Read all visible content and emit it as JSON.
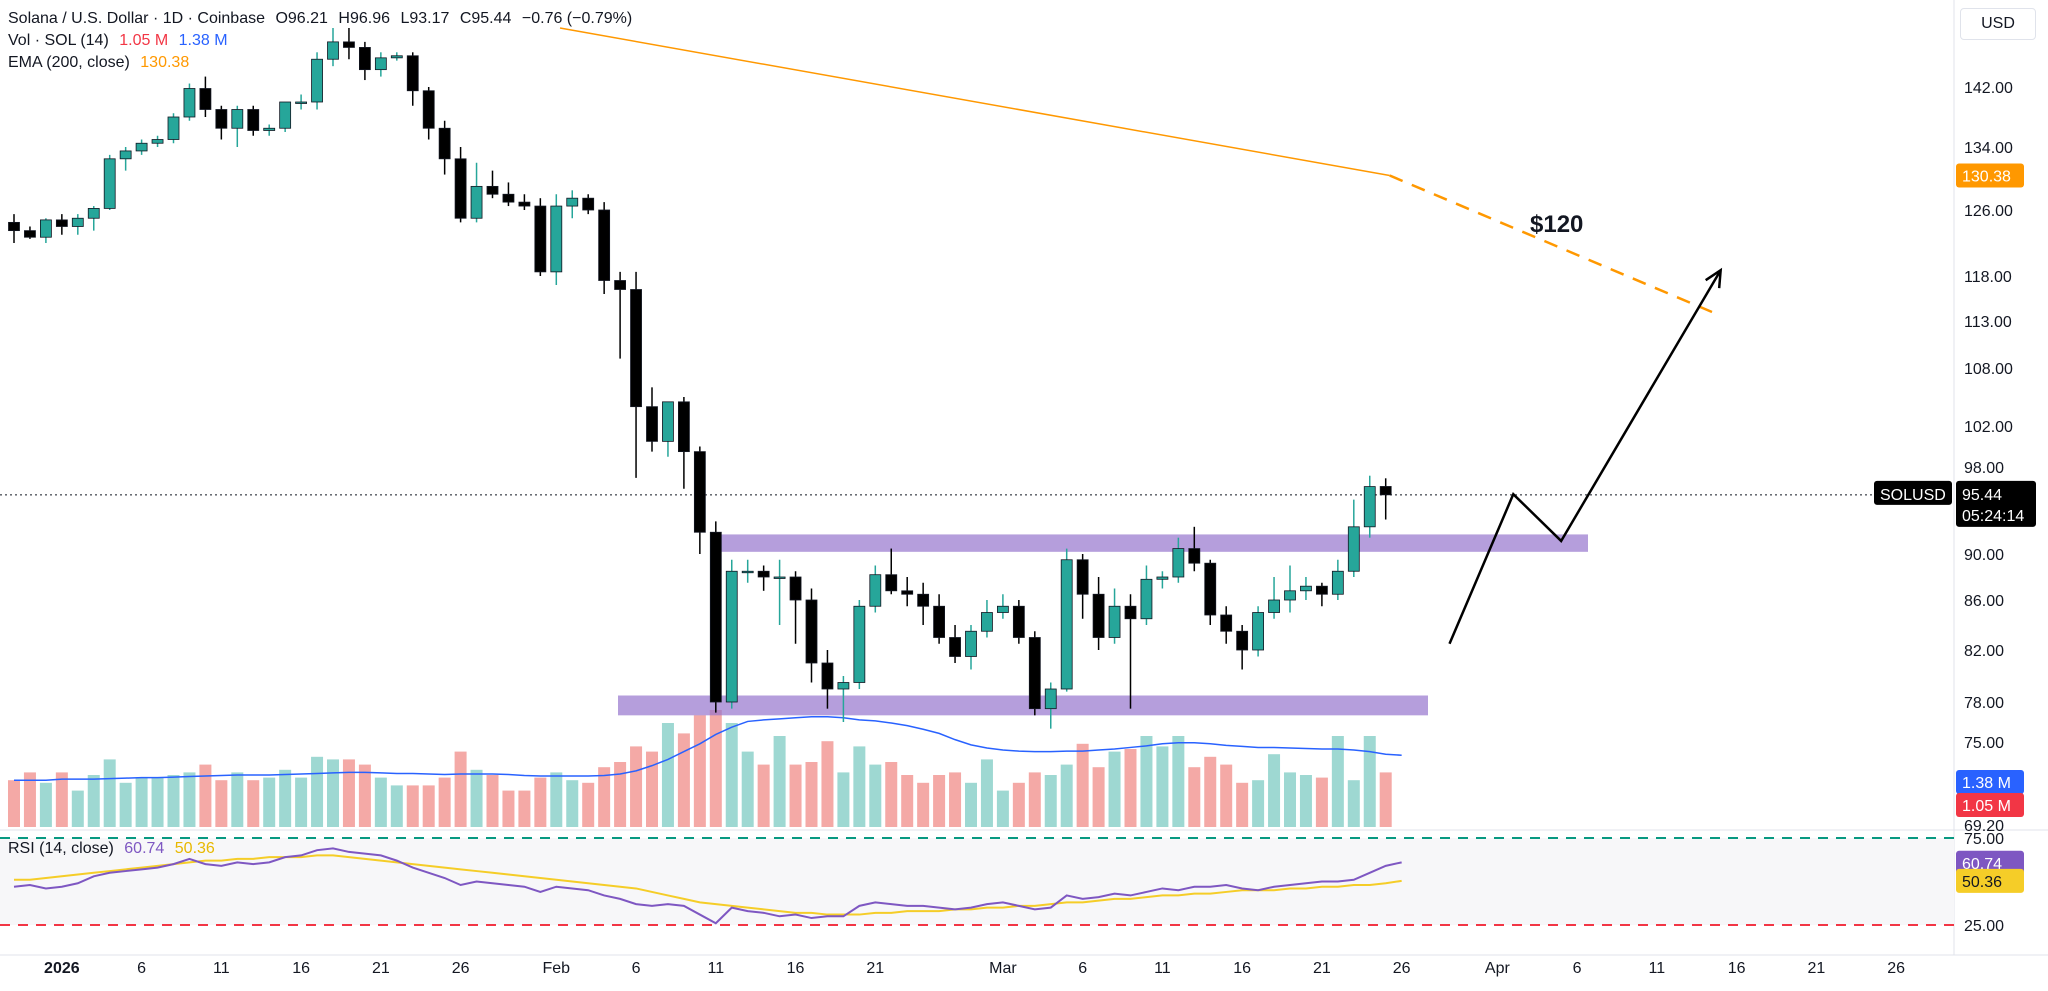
{
  "legend": {
    "title": "Solana / U.S. Dollar · 1D · Coinbase",
    "open": "O96.21",
    "high": "H96.96",
    "low": "L93.17",
    "close": "C95.44",
    "change": "−0.76 (−0.79%)",
    "vol_label": "Vol · SOL (14)",
    "vol_value1": "1.05 M",
    "vol_value2": "1.38 M",
    "ema_label": "EMA (200, close)",
    "ema_value": "130.38",
    "rsi_label": "RSI (14, close)",
    "rsi_value": "60.74",
    "rsi_ma_value": "50.36"
  },
  "currency": "USD",
  "colors": {
    "up": "#26a69a",
    "down": "#000000",
    "vol_up": "#9ed8d2",
    "vol_down": "#f4a9a6",
    "ema": "#ff9800",
    "vol_ma": "#2962ff",
    "rsi": "#7e57c2",
    "rsi_ma": "#f5cd28",
    "zone": "#9575cd",
    "upper_band": "#089981",
    "lower_band": "#f23645",
    "price_tag": "#000000"
  },
  "chart_data": {
    "type": "candlestick",
    "symbol": "SOLUSD",
    "price_axis_ticks": [
      "142.00",
      "134.00",
      "126.00",
      "118.00",
      "113.00",
      "108.00",
      "102.00",
      "98.00",
      "90.00",
      "86.00",
      "82.00",
      "78.00",
      "75.00",
      "69.20"
    ],
    "rsi_axis_ticks": [
      "75.00",
      "25.00"
    ],
    "time_axis": [
      {
        "label": "2026",
        "bold": true,
        "index": 3
      },
      {
        "label": "6",
        "index": 8
      },
      {
        "label": "11",
        "index": 13
      },
      {
        "label": "16",
        "index": 18
      },
      {
        "label": "21",
        "index": 23
      },
      {
        "label": "26",
        "index": 28
      },
      {
        "label": "Feb",
        "index": 34
      },
      {
        "label": "6",
        "index": 39
      },
      {
        "label": "11",
        "index": 44
      },
      {
        "label": "16",
        "index": 49
      },
      {
        "label": "21",
        "index": 54
      },
      {
        "label": "Mar",
        "index": 62
      },
      {
        "label": "6",
        "index": 67
      },
      {
        "label": "11",
        "index": 72
      },
      {
        "label": "16",
        "index": 77
      },
      {
        "label": "21",
        "index": 82
      },
      {
        "label": "26",
        "index": 87
      },
      {
        "label": "Apr",
        "index": 93
      },
      {
        "label": "6",
        "index": 98
      },
      {
        "label": "11",
        "index": 103
      },
      {
        "label": "16",
        "index": 108
      },
      {
        "label": "21",
        "index": 113
      },
      {
        "label": "26",
        "index": 118
      }
    ],
    "candles": [
      {
        "o": 124.5,
        "h": 125.5,
        "l": 122,
        "c": 123.5,
        "v": 0.9
      },
      {
        "o": 123.5,
        "h": 124,
        "l": 122.5,
        "c": 122.7,
        "v": 1.05
      },
      {
        "o": 122.7,
        "h": 125,
        "l": 122,
        "c": 124.8,
        "v": 0.85
      },
      {
        "o": 124.8,
        "h": 125.5,
        "l": 123,
        "c": 124.0,
        "v": 1.05
      },
      {
        "o": 124.0,
        "h": 125.5,
        "l": 123,
        "c": 125.0,
        "v": 0.7
      },
      {
        "o": 125.0,
        "h": 126.5,
        "l": 123.5,
        "c": 126.2,
        "v": 1.0
      },
      {
        "o": 126.2,
        "h": 133,
        "l": 126,
        "c": 132.5,
        "v": 1.3
      },
      {
        "o": 132.5,
        "h": 134,
        "l": 131,
        "c": 133.5,
        "v": 0.85
      },
      {
        "o": 133.5,
        "h": 135,
        "l": 133,
        "c": 134.5,
        "v": 0.95
      },
      {
        "o": 134.5,
        "h": 135.5,
        "l": 134,
        "c": 135,
        "v": 0.95
      },
      {
        "o": 135,
        "h": 138.5,
        "l": 134.5,
        "c": 138,
        "v": 1.0
      },
      {
        "o": 138,
        "h": 142.5,
        "l": 137.5,
        "c": 141.8,
        "v": 1.05
      },
      {
        "o": 141.8,
        "h": 143.5,
        "l": 138,
        "c": 139,
        "v": 1.2
      },
      {
        "o": 139,
        "h": 139.5,
        "l": 135,
        "c": 136.5,
        "v": 0.9
      },
      {
        "o": 136.5,
        "h": 139.5,
        "l": 134,
        "c": 139,
        "v": 1.05
      },
      {
        "o": 139,
        "h": 139.5,
        "l": 135.5,
        "c": 136.2,
        "v": 0.9
      },
      {
        "o": 136.2,
        "h": 137,
        "l": 135.5,
        "c": 136.5,
        "v": 0.95
      },
      {
        "o": 136.5,
        "h": 140,
        "l": 136,
        "c": 140,
        "v": 1.1
      },
      {
        "o": 140,
        "h": 141,
        "l": 139,
        "c": 140,
        "v": 0.95
      },
      {
        "o": 140,
        "h": 147,
        "l": 139,
        "c": 146,
        "v": 1.35
      },
      {
        "o": 146,
        "h": 150.5,
        "l": 145,
        "c": 148.5,
        "v": 1.3
      },
      {
        "o": 148.5,
        "h": 151,
        "l": 146,
        "c": 147.7,
        "v": 1.3
      },
      {
        "o": 147.7,
        "h": 148.5,
        "l": 143,
        "c": 144.5,
        "v": 1.2
      },
      {
        "o": 144.5,
        "h": 147,
        "l": 143.5,
        "c": 146.2,
        "v": 0.95
      },
      {
        "o": 146.2,
        "h": 147,
        "l": 145.8,
        "c": 146.5,
        "v": 0.8
      },
      {
        "o": 146.5,
        "h": 147,
        "l": 139.5,
        "c": 141.5,
        "v": 0.8
      },
      {
        "o": 141.5,
        "h": 142,
        "l": 135,
        "c": 136.5,
        "v": 0.8
      },
      {
        "o": 136.5,
        "h": 137.5,
        "l": 130.5,
        "c": 132.5,
        "v": 0.95
      },
      {
        "o": 132.5,
        "h": 134,
        "l": 124.5,
        "c": 125,
        "v": 1.45
      },
      {
        "o": 125,
        "h": 132,
        "l": 124.5,
        "c": 129,
        "v": 1.1
      },
      {
        "o": 129,
        "h": 131,
        "l": 127.5,
        "c": 128,
        "v": 1.0
      },
      {
        "o": 128,
        "h": 129.5,
        "l": 126.5,
        "c": 127,
        "v": 0.7
      },
      {
        "o": 127,
        "h": 128,
        "l": 126,
        "c": 126.5,
        "v": 0.7
      },
      {
        "o": 126.5,
        "h": 127.5,
        "l": 118,
        "c": 118.5,
        "v": 0.95
      },
      {
        "o": 118.5,
        "h": 128,
        "l": 117,
        "c": 126.5,
        "v": 1.05
      },
      {
        "o": 126.5,
        "h": 128.5,
        "l": 125,
        "c": 127.5,
        "v": 0.9
      },
      {
        "o": 127.5,
        "h": 128,
        "l": 125.5,
        "c": 126,
        "v": 0.85
      },
      {
        "o": 126,
        "h": 127,
        "l": 116,
        "c": 117.5,
        "v": 1.15
      },
      {
        "o": 117.5,
        "h": 118.5,
        "l": 109,
        "c": 116.5,
        "v": 1.25
      },
      {
        "o": 116.5,
        "h": 118.5,
        "l": 97,
        "c": 104,
        "v": 1.55
      },
      {
        "o": 104,
        "h": 106,
        "l": 99.5,
        "c": 100.5,
        "v": 1.45
      },
      {
        "o": 100.5,
        "h": 104.5,
        "l": 99,
        "c": 104.5,
        "v": 2.0
      },
      {
        "o": 104.5,
        "h": 105,
        "l": 96,
        "c": 99.5,
        "v": 1.8
      },
      {
        "o": 99.5,
        "h": 100,
        "l": 90,
        "c": 92,
        "v": 2.15
      },
      {
        "o": 92,
        "h": 93,
        "l": 77.2,
        "c": 78,
        "v": 2.25
      },
      {
        "o": 78,
        "h": 89.5,
        "l": 77.5,
        "c": 88.5,
        "v": 2.0
      },
      {
        "o": 88.5,
        "h": 89.5,
        "l": 87.5,
        "c": 88.5,
        "v": 1.45
      },
      {
        "o": 88.5,
        "h": 89,
        "l": 86.8,
        "c": 88,
        "v": 1.2
      },
      {
        "o": 88,
        "h": 89.5,
        "l": 84,
        "c": 88,
        "v": 1.75
      },
      {
        "o": 88,
        "h": 88.5,
        "l": 82.5,
        "c": 86,
        "v": 1.2
      },
      {
        "o": 86,
        "h": 87,
        "l": 79.5,
        "c": 81,
        "v": 1.25
      },
      {
        "o": 81,
        "h": 82,
        "l": 77.5,
        "c": 79,
        "v": 1.65
      },
      {
        "o": 79,
        "h": 80,
        "l": 76.5,
        "c": 79.5,
        "v": 1.05
      },
      {
        "o": 79.5,
        "h": 86,
        "l": 79,
        "c": 85.5,
        "v": 1.55
      },
      {
        "o": 85.5,
        "h": 89,
        "l": 85,
        "c": 88.2,
        "v": 1.2
      },
      {
        "o": 88.2,
        "h": 90.5,
        "l": 86.5,
        "c": 86.8,
        "v": 1.25
      },
      {
        "o": 86.8,
        "h": 88,
        "l": 85.5,
        "c": 86.5,
        "v": 1.0
      },
      {
        "o": 86.5,
        "h": 87.5,
        "l": 84,
        "c": 85.5,
        "v": 0.85
      },
      {
        "o": 85.5,
        "h": 86.5,
        "l": 82.5,
        "c": 83,
        "v": 1.0
      },
      {
        "o": 83,
        "h": 84,
        "l": 81,
        "c": 81.5,
        "v": 1.05
      },
      {
        "o": 81.5,
        "h": 84,
        "l": 80.5,
        "c": 83.5,
        "v": 0.85
      },
      {
        "o": 83.5,
        "h": 86,
        "l": 83,
        "c": 85,
        "v": 1.3
      },
      {
        "o": 85,
        "h": 86.5,
        "l": 84.5,
        "c": 85.5,
        "v": 0.7
      },
      {
        "o": 85.5,
        "h": 86,
        "l": 82.5,
        "c": 83,
        "v": 0.85
      },
      {
        "o": 83,
        "h": 83.5,
        "l": 77,
        "c": 77.5,
        "v": 1.05
      },
      {
        "o": 77.5,
        "h": 79.5,
        "l": 76,
        "c": 79,
        "v": 1.0
      },
      {
        "o": 79,
        "h": 90.5,
        "l": 78.8,
        "c": 89.5,
        "v": 1.2
      },
      {
        "o": 89.5,
        "h": 90,
        "l": 84.5,
        "c": 86.5,
        "v": 1.6
      },
      {
        "o": 86.5,
        "h": 88,
        "l": 82,
        "c": 83,
        "v": 1.15
      },
      {
        "o": 83,
        "h": 87,
        "l": 82.5,
        "c": 85.5,
        "v": 1.45
      },
      {
        "o": 85.5,
        "h": 86.5,
        "l": 77.5,
        "c": 84.5,
        "v": 1.5
      },
      {
        "o": 84.5,
        "h": 89,
        "l": 84,
        "c": 87.8,
        "v": 1.75
      },
      {
        "o": 87.8,
        "h": 88.5,
        "l": 87,
        "c": 88,
        "v": 1.55
      },
      {
        "o": 88,
        "h": 91.5,
        "l": 87.5,
        "c": 90.5,
        "v": 1.75
      },
      {
        "o": 90.5,
        "h": 92.5,
        "l": 88.5,
        "c": 89.2,
        "v": 1.15
      },
      {
        "o": 89.2,
        "h": 89.5,
        "l": 84,
        "c": 84.8,
        "v": 1.35
      },
      {
        "o": 84.8,
        "h": 85.5,
        "l": 82.5,
        "c": 83.5,
        "v": 1.2
      },
      {
        "o": 83.5,
        "h": 84,
        "l": 80.5,
        "c": 82,
        "v": 0.85
      },
      {
        "o": 82,
        "h": 85.5,
        "l": 81.5,
        "c": 85,
        "v": 0.9
      },
      {
        "o": 85,
        "h": 88,
        "l": 84.5,
        "c": 86,
        "v": 1.4
      },
      {
        "o": 86,
        "h": 89,
        "l": 85,
        "c": 86.8,
        "v": 1.05
      },
      {
        "o": 86.8,
        "h": 88,
        "l": 86,
        "c": 87.2,
        "v": 1.0
      },
      {
        "o": 87.2,
        "h": 87.5,
        "l": 85.5,
        "c": 86.5,
        "v": 0.95
      },
      {
        "o": 86.5,
        "h": 89.5,
        "l": 86,
        "c": 88.5,
        "v": 1.75
      },
      {
        "o": 88.5,
        "h": 95,
        "l": 88,
        "c": 92.5,
        "v": 0.9
      },
      {
        "o": 92.5,
        "h": 97.2,
        "l": 91.5,
        "c": 96.2,
        "v": 1.75
      },
      {
        "o": 96.21,
        "h": 96.96,
        "l": 93.17,
        "c": 95.44,
        "v": 1.05
      }
    ],
    "ema_200": {
      "start": 150.5,
      "current": 130.38,
      "projected_end": 114
    },
    "vol_ma_points": [
      0.9,
      0.9,
      0.9,
      0.92,
      0.92,
      0.92,
      0.93,
      0.94,
      0.95,
      0.95,
      0.96,
      0.97,
      0.98,
      0.99,
      1.0,
      1.0,
      1.0,
      1.01,
      1.02,
      1.03,
      1.04,
      1.05,
      1.05,
      1.04,
      1.03,
      1.03,
      1.02,
      1.01,
      1.02,
      1.02,
      1.02,
      1.01,
      0.99,
      0.98,
      0.98,
      0.98,
      0.98,
      0.99,
      1.02,
      1.08,
      1.18,
      1.3,
      1.45,
      1.6,
      1.78,
      1.92,
      2.03,
      2.06,
      2.08,
      2.1,
      2.12,
      2.12,
      2.1,
      2.06,
      2.04,
      2.0,
      1.95,
      1.88,
      1.8,
      1.68,
      1.58,
      1.52,
      1.48,
      1.46,
      1.45,
      1.45,
      1.46,
      1.46,
      1.48,
      1.5,
      1.53,
      1.56,
      1.6,
      1.62,
      1.62,
      1.6,
      1.57,
      1.55,
      1.53,
      1.53,
      1.52,
      1.51,
      1.5,
      1.5,
      1.48,
      1.45,
      1.4,
      1.38
    ],
    "rsi": [
      47,
      48,
      46,
      47,
      49,
      53,
      55,
      56,
      57,
      58,
      60,
      63,
      60,
      59,
      61,
      60,
      61,
      64,
      65,
      68,
      69,
      67,
      66,
      65,
      62,
      58,
      55,
      52,
      48,
      50,
      49,
      48,
      47,
      44,
      47,
      46,
      45,
      42,
      40,
      37,
      36,
      37,
      36,
      31,
      26,
      35,
      33,
      32,
      30,
      31,
      29,
      30,
      30,
      36,
      38,
      37,
      36,
      36,
      35,
      34,
      35,
      37,
      38,
      36,
      34,
      35,
      42,
      40,
      41,
      43,
      42,
      44,
      46,
      45,
      47,
      47,
      48,
      46,
      45,
      47,
      48,
      49,
      50,
      50,
      51,
      55,
      59,
      61
    ],
    "rsi_ma": [
      51,
      51,
      52,
      53,
      54,
      55,
      56,
      57,
      58,
      59,
      60,
      61,
      62,
      62,
      63,
      63,
      64,
      64,
      64,
      65,
      65,
      64,
      63,
      62,
      61,
      60,
      59,
      58,
      57,
      56,
      55,
      54,
      53,
      52,
      51,
      50,
      49,
      48,
      47,
      46,
      44,
      42,
      40,
      38,
      37,
      36,
      35,
      34,
      33,
      32,
      32,
      31,
      31,
      31,
      32,
      32,
      33,
      33,
      33,
      34,
      34,
      35,
      35,
      36,
      36,
      37,
      38,
      38,
      39,
      40,
      40,
      41,
      42,
      42,
      43,
      43,
      44,
      45,
      45,
      45,
      46,
      46,
      47,
      47,
      48,
      48,
      49,
      50.36
    ],
    "support_zone": {
      "low": 77,
      "high": 78.5
    },
    "resistance_zone": {
      "low": 90.2,
      "high": 91.8
    },
    "projection_path": [
      {
        "x": 90,
        "y": 82.5
      },
      {
        "x": 94,
        "y": 95.5
      },
      {
        "x": 97,
        "y": 91.2
      },
      {
        "x": 107,
        "y": 118.7
      }
    ],
    "target_label": "$120",
    "last_price_label": "95.44",
    "countdown": "05:24:14",
    "symbol_label": "SOLUSD",
    "vol_tag_1": "1.38 M",
    "vol_tag_2": "1.05 M",
    "ema_tag": "130.38",
    "rsi_tag": "60.74",
    "rsi_ma_tag": "50.36"
  }
}
